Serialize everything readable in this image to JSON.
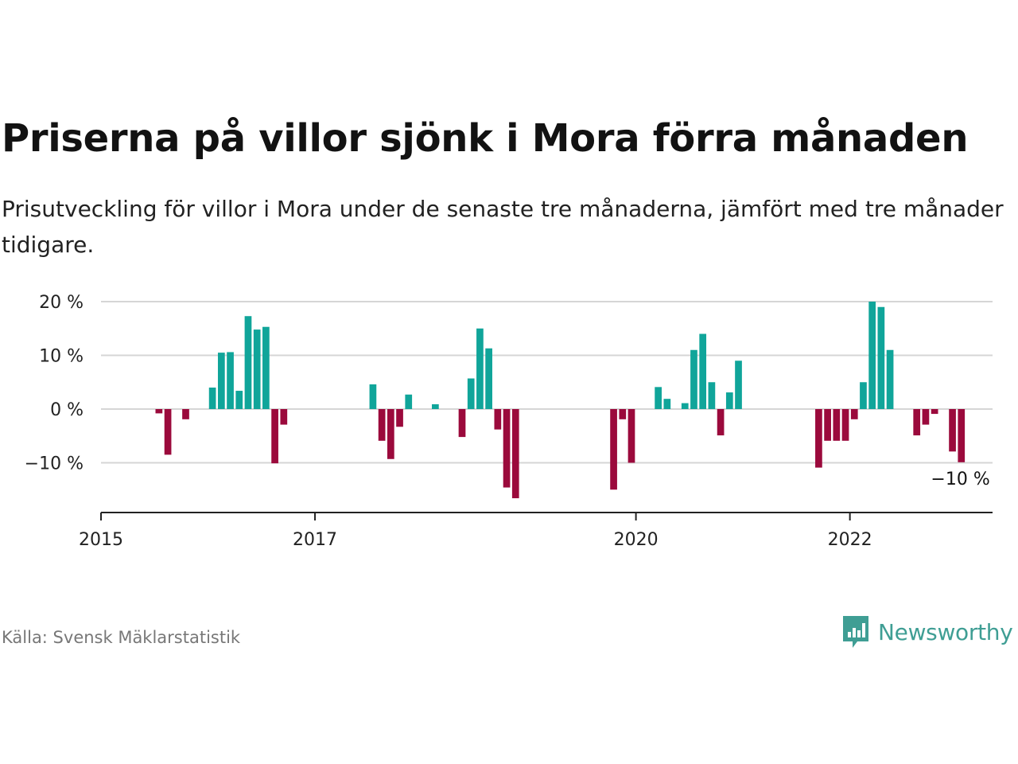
{
  "chart_data": {
    "type": "bar",
    "title": "Priserna på villor sjönk i Mora förra månaden",
    "subtitle": "Prisutveckling för villor i Mora under de senaste tre månaderna, jämfört med tre månader tidigare.",
    "x_start": "2015-01",
    "x_end": "2023-05",
    "x_ticks": [
      {
        "date": "2015-01",
        "label": "2015"
      },
      {
        "date": "2017-01",
        "label": "2017"
      },
      {
        "date": "2020-01",
        "label": "2020"
      },
      {
        "date": "2022-01",
        "label": "2022"
      }
    ],
    "y_ticks": [
      {
        "value": 20,
        "label": "20 %"
      },
      {
        "value": 10,
        "label": "10 %"
      },
      {
        "value": 0,
        "label": "0 %"
      },
      {
        "value": -10,
        "label": "−10 %"
      }
    ],
    "ylim": [
      -18,
      20
    ],
    "colors": {
      "positive": "#10a59a",
      "negative": "#9b0a3c"
    },
    "points": [
      {
        "x": "2015-07",
        "value": -0.8
      },
      {
        "x": "2015-08",
        "value": -8.5
      },
      {
        "x": "2015-10",
        "value": -1.9
      },
      {
        "x": "2016-01",
        "value": 4.0
      },
      {
        "x": "2016-02",
        "value": 10.5
      },
      {
        "x": "2016-03",
        "value": 10.6
      },
      {
        "x": "2016-04",
        "value": 3.4
      },
      {
        "x": "2016-05",
        "value": 17.3
      },
      {
        "x": "2016-06",
        "value": 14.8
      },
      {
        "x": "2016-07",
        "value": 15.3
      },
      {
        "x": "2016-08",
        "value": -10.1
      },
      {
        "x": "2016-09",
        "value": -2.9
      },
      {
        "x": "2017-07",
        "value": 4.6
      },
      {
        "x": "2017-08",
        "value": -5.9
      },
      {
        "x": "2017-09",
        "value": -9.3
      },
      {
        "x": "2017-10",
        "value": -3.3
      },
      {
        "x": "2017-11",
        "value": 2.7
      },
      {
        "x": "2018-02",
        "value": 0.9
      },
      {
        "x": "2018-05",
        "value": -5.2
      },
      {
        "x": "2018-06",
        "value": 5.7
      },
      {
        "x": "2018-07",
        "value": 15.0
      },
      {
        "x": "2018-08",
        "value": 11.3
      },
      {
        "x": "2018-09",
        "value": -3.8
      },
      {
        "x": "2018-10",
        "value": -14.6
      },
      {
        "x": "2018-11",
        "value": -16.6
      },
      {
        "x": "2019-10",
        "value": -15.0
      },
      {
        "x": "2019-11",
        "value": -1.9
      },
      {
        "x": "2019-12",
        "value": -10.0
      },
      {
        "x": "2020-03",
        "value": 4.1
      },
      {
        "x": "2020-04",
        "value": 1.9
      },
      {
        "x": "2020-06",
        "value": 1.1
      },
      {
        "x": "2020-07",
        "value": 11.0
      },
      {
        "x": "2020-08",
        "value": 14.0
      },
      {
        "x": "2020-09",
        "value": 5.0
      },
      {
        "x": "2020-10",
        "value": -4.9
      },
      {
        "x": "2020-11",
        "value": 3.1
      },
      {
        "x": "2020-12",
        "value": 9.0
      },
      {
        "x": "2021-09",
        "value": -10.9
      },
      {
        "x": "2021-10",
        "value": -5.9
      },
      {
        "x": "2021-11",
        "value": -5.9
      },
      {
        "x": "2021-12",
        "value": -5.9
      },
      {
        "x": "2022-01",
        "value": -1.9
      },
      {
        "x": "2022-02",
        "value": 5.0
      },
      {
        "x": "2022-03",
        "value": 20.0
      },
      {
        "x": "2022-04",
        "value": 19.0
      },
      {
        "x": "2022-05",
        "value": 11.0
      },
      {
        "x": "2022-08",
        "value": -4.9
      },
      {
        "x": "2022-09",
        "value": -2.9
      },
      {
        "x": "2022-10",
        "value": -0.9
      },
      {
        "x": "2022-12",
        "value": -7.9
      },
      {
        "x": "2023-01",
        "value": -9.9
      }
    ],
    "annotation": {
      "x": "2023-01",
      "text": "−10 %"
    }
  },
  "source": "Källa: Svensk Mäklarstatistik",
  "brand": {
    "name": "Newsworthy",
    "icon": "newsworthy-logo-icon",
    "color": "#3f9e94"
  }
}
